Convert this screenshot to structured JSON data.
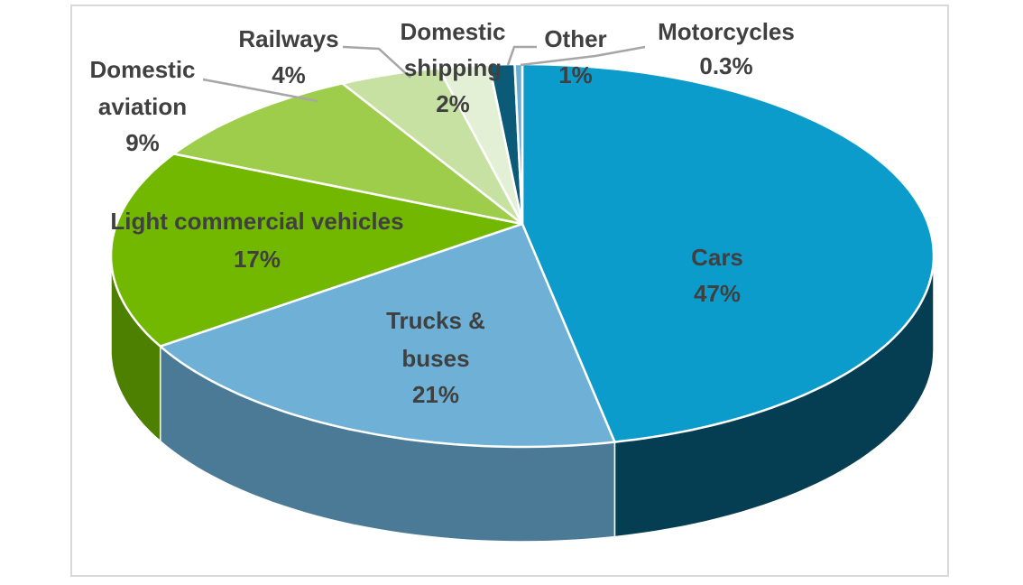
{
  "chart_data": {
    "type": "pie",
    "style": "3d",
    "title": "",
    "slices": [
      {
        "label": "Cars",
        "value": 47,
        "text": "47%",
        "color": "#0c9ccc",
        "side": "#053e52"
      },
      {
        "label": "Trucks & buses",
        "value": 21,
        "text": "21%",
        "color": "#6eb0d6",
        "side": "#4a7a96"
      },
      {
        "label": "Light commercial vehicles",
        "value": 17,
        "text": "17%",
        "color": "#72b800",
        "side": "#4e8000"
      },
      {
        "label": "Domestic aviation",
        "value": 9,
        "text": "9%",
        "color": "#9dcd4b",
        "side": "#6e9a30"
      },
      {
        "label": "Railways",
        "value": 4,
        "text": "4%",
        "color": "#c7e1a3",
        "side": "#8fa870"
      },
      {
        "label": "Domestic shipping",
        "value": 2,
        "text": "2%",
        "color": "#e3f0d6",
        "side": "#a8b59c"
      },
      {
        "label": "Other",
        "value": 1,
        "text": "1%",
        "color": "#0a5a78",
        "side": "#063a4e"
      },
      {
        "label": "Motorcycles",
        "value": 0.3,
        "text": "0.3%",
        "color": "#6aaed4",
        "side": "#3f7a99"
      }
    ]
  }
}
